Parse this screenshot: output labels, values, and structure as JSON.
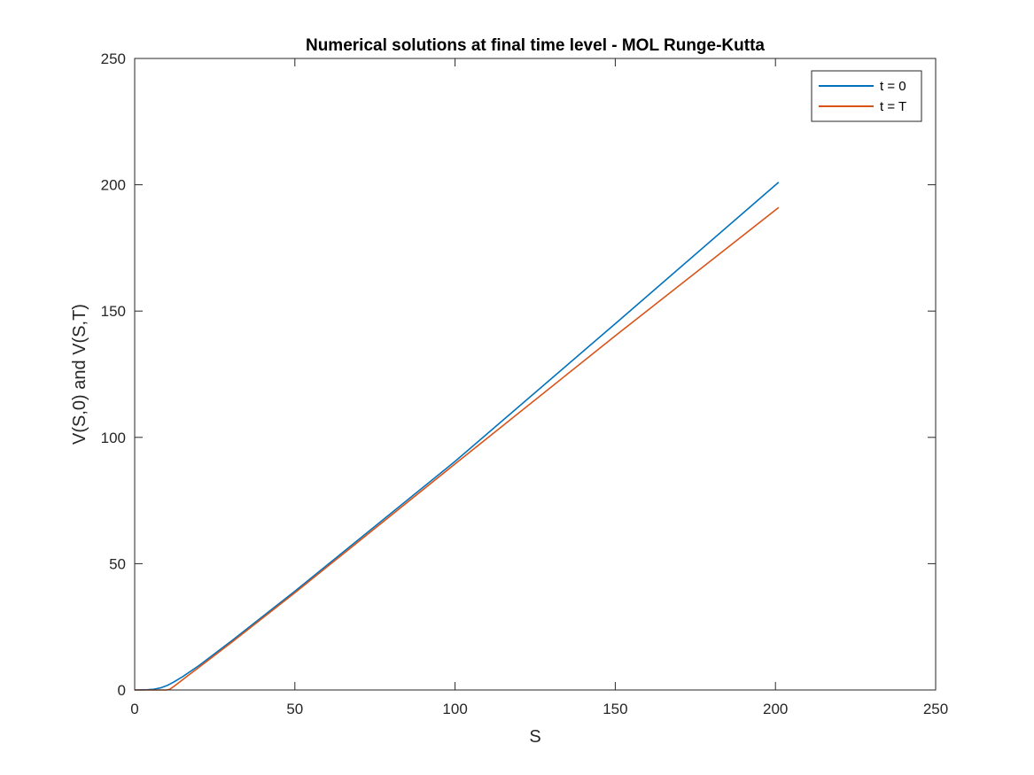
{
  "chart_data": {
    "type": "line",
    "title": "Numerical solutions at final time level - MOL Runge-Kutta",
    "xlabel": "S",
    "ylabel": "V(S,0) and V(S,T)",
    "xlim": [
      0,
      250
    ],
    "ylim": [
      0,
      250
    ],
    "xticks": [
      0,
      50,
      100,
      150,
      200,
      250
    ],
    "yticks": [
      0,
      50,
      100,
      150,
      200,
      250
    ],
    "grid": false,
    "legend_position": "top-right",
    "series": [
      {
        "name": "t = 0",
        "color": "#0072BD",
        "x": [
          0,
          4,
          6,
          8,
          10,
          12,
          15,
          20,
          30,
          50,
          100,
          150,
          201
        ],
        "y": [
          0,
          0.1,
          0.3,
          0.8,
          1.7,
          3.0,
          5.3,
          9.6,
          19.2,
          39.1,
          90.5,
          145.0,
          201.0
        ]
      },
      {
        "name": "t = T",
        "color": "#D95319",
        "x": [
          0,
          8,
          10,
          11,
          12,
          14,
          16,
          20,
          30,
          50,
          100,
          150,
          201
        ],
        "y": [
          0,
          0,
          0,
          0.3,
          1.2,
          3.1,
          5.1,
          8.9,
          18.6,
          38.5,
          89.5,
          140.2,
          191.0
        ]
      }
    ]
  }
}
